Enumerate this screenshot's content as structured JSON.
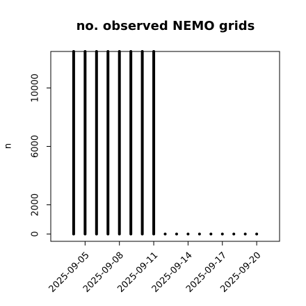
{
  "chart_data": {
    "type": "bar",
    "title": "no. observed NEMO grids",
    "y_label": "n",
    "x": [
      "2025-09-04",
      "2025-09-05",
      "2025-09-06",
      "2025-09-07",
      "2025-09-08",
      "2025-09-09",
      "2025-09-10",
      "2025-09-11",
      "2025-09-12",
      "2025-09-13",
      "2025-09-14",
      "2025-09-15",
      "2025-09-16",
      "2025-09-17",
      "2025-09-18",
      "2025-09-19",
      "2025-09-20"
    ],
    "values": [
      12500,
      12500,
      12500,
      12500,
      12500,
      12500,
      12500,
      12500,
      0,
      0,
      0,
      0,
      0,
      0,
      0,
      0,
      0
    ],
    "color": "#000000",
    "xlim": [
      "2025-09-02",
      "2025-09-22"
    ],
    "xticks": [
      "2025-09-05",
      "2025-09-08",
      "2025-09-11",
      "2025-09-14",
      "2025-09-17",
      "2025-09-20"
    ],
    "ylim": [
      -500,
      12500
    ],
    "yticks": [
      0,
      2000,
      6000,
      10000
    ]
  }
}
